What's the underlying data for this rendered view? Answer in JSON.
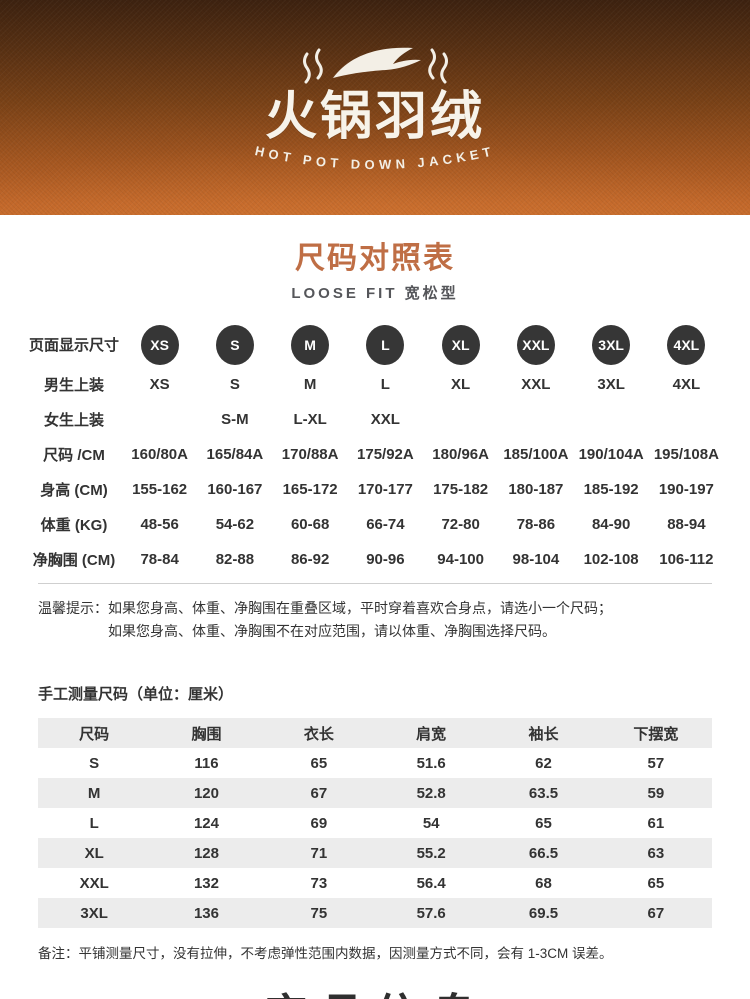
{
  "banner": {
    "brand_logo": "li-ning-swoosh",
    "title": "火锅羽绒",
    "subtitle": "HOT POT DOWN JACKET"
  },
  "size_chart": {
    "title": "尺码对照表",
    "subtitle": "LOOSE FIT 宽松型",
    "rows": [
      {
        "label": "页面显示尺寸",
        "style": "circles",
        "values": [
          "XS",
          "S",
          "M",
          "L",
          "XL",
          "XXL",
          "3XL",
          "4XL"
        ]
      },
      {
        "label": "男生上装",
        "values": [
          "XS",
          "S",
          "M",
          "L",
          "XL",
          "XXL",
          "3XL",
          "4XL"
        ]
      },
      {
        "label": "女生上装",
        "values": [
          "",
          "S-M",
          "L-XL",
          "XXL",
          "",
          "",
          "",
          ""
        ]
      },
      {
        "label": "尺码 /CM",
        "values": [
          "160/80A",
          "165/84A",
          "170/88A",
          "175/92A",
          "180/96A",
          "185/100A",
          "190/104A",
          "195/108A"
        ]
      },
      {
        "label": "身高 (CM)",
        "values": [
          "155-162",
          "160-167",
          "165-172",
          "170-177",
          "175-182",
          "180-187",
          "185-192",
          "190-197"
        ]
      },
      {
        "label": "体重 (KG)",
        "values": [
          "48-56",
          "54-62",
          "60-68",
          "66-74",
          "72-80",
          "78-86",
          "84-90",
          "88-94"
        ]
      },
      {
        "label": "净胸围 (CM)",
        "values": [
          "78-84",
          "82-88",
          "86-92",
          "90-96",
          "94-100",
          "98-104",
          "102-108",
          "106-112"
        ]
      }
    ]
  },
  "tips": {
    "label": "温馨提示：",
    "lines": [
      "如果您身高、体重、净胸围在重叠区域，平时穿着喜欢合身点，请选小一个尺码；",
      "如果您身高、体重、净胸围不在对应范围，请以体重、净胸围选择尺码。"
    ]
  },
  "measurement": {
    "title": "手工测量尺码（单位：厘米）",
    "headers": [
      "尺码",
      "胸围",
      "衣长",
      "肩宽",
      "袖长",
      "下摆宽"
    ],
    "rows": [
      [
        "S",
        "116",
        "65",
        "51.6",
        "62",
        "57"
      ],
      [
        "M",
        "120",
        "67",
        "52.8",
        "63.5",
        "59"
      ],
      [
        "L",
        "124",
        "69",
        "54",
        "65",
        "61"
      ],
      [
        "XL",
        "128",
        "71",
        "55.2",
        "66.5",
        "63"
      ],
      [
        "XXL",
        "132",
        "73",
        "56.4",
        "68",
        "65"
      ],
      [
        "3XL",
        "136",
        "75",
        "57.6",
        "69.5",
        "67"
      ]
    ],
    "note": "备注：平铺测量尺寸，没有拉伸，不考虑弹性范围内数据，因测量方式不同，会有 1-3CM 误差。"
  },
  "footer": {
    "next_section_title": "产品信息"
  },
  "colors": {
    "accent": "#bf6e45",
    "banner_top": "#3d2210",
    "banner_bottom": "#c56a2b",
    "circle_badge": "#363636",
    "table_stripe": "#ececec",
    "text": "#333333"
  }
}
